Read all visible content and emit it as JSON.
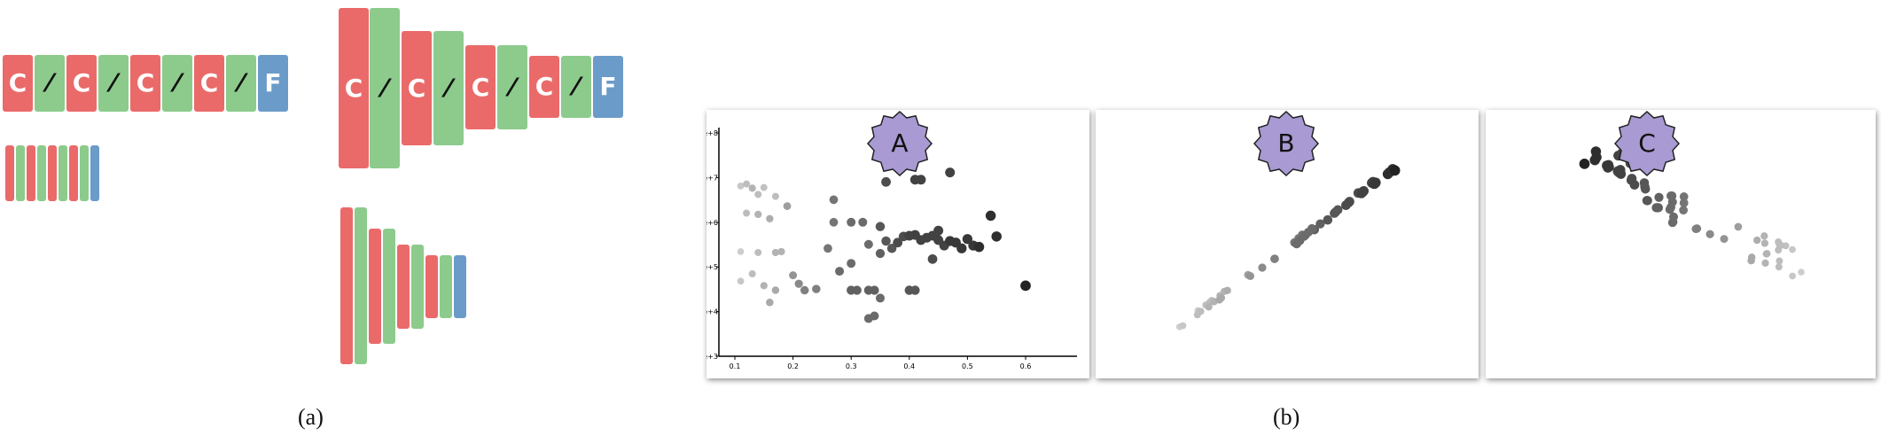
{
  "figure_a": {
    "block_glyphs": {
      "conv": "C",
      "act": "⁄",
      "fc": "F"
    },
    "caption": "(a)"
  },
  "figure_b": {
    "caption": "(b)",
    "panels": [
      {
        "badge": "A",
        "show_axes": true
      },
      {
        "badge": "B",
        "show_axes": false
      },
      {
        "badge": "C",
        "show_axes": false
      }
    ],
    "badge_color": "#a99ad3"
  },
  "chart_data": {
    "type": "scatter",
    "xlabel": "",
    "ylabel": "",
    "xlim": [
      0.08,
      0.65
    ],
    "y_scale": "log",
    "ylim": [
      1000,
      100000000
    ],
    "x_ticks": [
      "0.1",
      "0.2",
      "0.3",
      "0.4",
      "0.5",
      "0.6"
    ],
    "y_ticks": [
      "1e+3",
      "1e+4",
      "1e+5",
      "1e+6",
      "1e+7",
      "1e+8"
    ],
    "points": [
      {
        "x": 0.11,
        "y": 6500000,
        "shade": 0.15
      },
      {
        "x": 0.12,
        "y": 7200000,
        "shade": 0.2
      },
      {
        "x": 0.13,
        "y": 5800000,
        "shade": 0.25
      },
      {
        "x": 0.14,
        "y": 4200000,
        "shade": 0.2
      },
      {
        "x": 0.15,
        "y": 6000000,
        "shade": 0.18
      },
      {
        "x": 0.17,
        "y": 3800000,
        "shade": 0.2
      },
      {
        "x": 0.12,
        "y": 1600000,
        "shade": 0.2
      },
      {
        "x": 0.14,
        "y": 1500000,
        "shade": 0.25
      },
      {
        "x": 0.16,
        "y": 1200000,
        "shade": 0.28
      },
      {
        "x": 0.19,
        "y": 2300000,
        "shade": 0.35
      },
      {
        "x": 0.11,
        "y": 220000,
        "shade": 0.12
      },
      {
        "x": 0.14,
        "y": 210000,
        "shade": 0.2
      },
      {
        "x": 0.17,
        "y": 210000,
        "shade": 0.25
      },
      {
        "x": 0.18,
        "y": 220000,
        "shade": 0.25
      },
      {
        "x": 0.11,
        "y": 48000,
        "shade": 0.15
      },
      {
        "x": 0.13,
        "y": 70000,
        "shade": 0.2
      },
      {
        "x": 0.15,
        "y": 38000,
        "shade": 0.25
      },
      {
        "x": 0.17,
        "y": 30000,
        "shade": 0.3
      },
      {
        "x": 0.16,
        "y": 16000,
        "shade": 0.3
      },
      {
        "x": 0.2,
        "y": 65000,
        "shade": 0.4
      },
      {
        "x": 0.21,
        "y": 42000,
        "shade": 0.45
      },
      {
        "x": 0.22,
        "y": 30000,
        "shade": 0.5
      },
      {
        "x": 0.24,
        "y": 32000,
        "shade": 0.5
      },
      {
        "x": 0.26,
        "y": 260000,
        "shade": 0.55
      },
      {
        "x": 0.27,
        "y": 3200000,
        "shade": 0.55
      },
      {
        "x": 0.27,
        "y": 1000000,
        "shade": 0.55
      },
      {
        "x": 0.3,
        "y": 120000,
        "shade": 0.6
      },
      {
        "x": 0.28,
        "y": 80000,
        "shade": 0.6
      },
      {
        "x": 0.3,
        "y": 30000,
        "shade": 0.65
      },
      {
        "x": 0.31,
        "y": 30000,
        "shade": 0.65
      },
      {
        "x": 0.33,
        "y": 30000,
        "shade": 0.65
      },
      {
        "x": 0.34,
        "y": 30000,
        "shade": 0.65
      },
      {
        "x": 0.3,
        "y": 1000000,
        "shade": 0.6
      },
      {
        "x": 0.32,
        "y": 1000000,
        "shade": 0.6
      },
      {
        "x": 0.33,
        "y": 320000,
        "shade": 0.6
      },
      {
        "x": 0.35,
        "y": 200000,
        "shade": 0.65
      },
      {
        "x": 0.36,
        "y": 380000,
        "shade": 0.7
      },
      {
        "x": 0.33,
        "y": 7000,
        "shade": 0.6
      },
      {
        "x": 0.34,
        "y": 8000,
        "shade": 0.6
      },
      {
        "x": 0.35,
        "y": 20000,
        "shade": 0.6
      },
      {
        "x": 0.35,
        "y": 800000,
        "shade": 0.7
      },
      {
        "x": 0.36,
        "y": 8000000,
        "shade": 0.75
      },
      {
        "x": 0.37,
        "y": 260000,
        "shade": 0.7
      },
      {
        "x": 0.38,
        "y": 350000,
        "shade": 0.75
      },
      {
        "x": 0.39,
        "y": 480000,
        "shade": 0.75
      },
      {
        "x": 0.4,
        "y": 30000,
        "shade": 0.7
      },
      {
        "x": 0.41,
        "y": 30000,
        "shade": 0.7
      },
      {
        "x": 0.4,
        "y": 500000,
        "shade": 0.8
      },
      {
        "x": 0.41,
        "y": 520000,
        "shade": 0.8
      },
      {
        "x": 0.42,
        "y": 400000,
        "shade": 0.8
      },
      {
        "x": 0.43,
        "y": 450000,
        "shade": 0.8
      },
      {
        "x": 0.44,
        "y": 500000,
        "shade": 0.8
      },
      {
        "x": 0.45,
        "y": 650000,
        "shade": 0.8
      },
      {
        "x": 0.45,
        "y": 400000,
        "shade": 0.8
      },
      {
        "x": 0.46,
        "y": 300000,
        "shade": 0.8
      },
      {
        "x": 0.41,
        "y": 9000000,
        "shade": 0.8
      },
      {
        "x": 0.42,
        "y": 9000000,
        "shade": 0.8
      },
      {
        "x": 0.44,
        "y": 150000,
        "shade": 0.75
      },
      {
        "x": 0.47,
        "y": 13000000,
        "shade": 0.8
      },
      {
        "x": 0.47,
        "y": 380000,
        "shade": 0.85
      },
      {
        "x": 0.48,
        "y": 350000,
        "shade": 0.85
      },
      {
        "x": 0.49,
        "y": 260000,
        "shade": 0.85
      },
      {
        "x": 0.5,
        "y": 420000,
        "shade": 0.85
      },
      {
        "x": 0.51,
        "y": 300000,
        "shade": 0.85
      },
      {
        "x": 0.52,
        "y": 280000,
        "shade": 0.9
      },
      {
        "x": 0.54,
        "y": 1400000,
        "shade": 0.9
      },
      {
        "x": 0.55,
        "y": 480000,
        "shade": 0.9
      },
      {
        "x": 0.6,
        "y": 38000,
        "shade": 0.95
      }
    ]
  }
}
